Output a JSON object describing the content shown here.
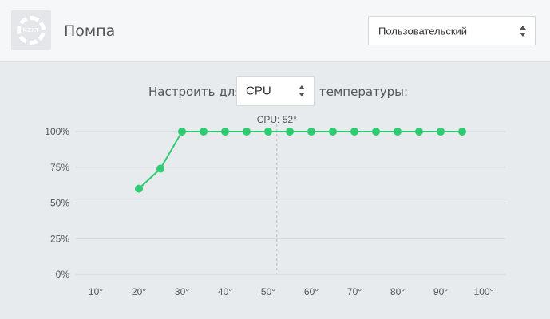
{
  "header": {
    "logo_text": "NZXT",
    "title": "Помпа",
    "preset": {
      "value": "Пользовательский"
    }
  },
  "config": {
    "prefix": "Настроить для",
    "sensor": "CPU",
    "suffix": "температуры:"
  },
  "colors": {
    "accent": "#2ecc71",
    "grid": "#cfd3d7",
    "marker": "#b8bcc1"
  },
  "chart_data": {
    "type": "line",
    "x_ticks": [
      "10°",
      "20°",
      "30°",
      "40°",
      "50°",
      "60°",
      "70°",
      "80°",
      "90°",
      "100°"
    ],
    "y_ticks": [
      "0%",
      "25%",
      "50%",
      "75%",
      "100%"
    ],
    "xlim": [
      10,
      100
    ],
    "ylim": [
      0,
      100
    ],
    "series": [
      {
        "x": [
          20,
          25,
          30,
          35,
          40,
          45,
          50,
          55,
          60,
          65,
          70,
          75,
          80,
          85,
          90,
          95
        ],
        "y": [
          60,
          74,
          100,
          100,
          100,
          100,
          100,
          100,
          100,
          100,
          100,
          100,
          100,
          100,
          100,
          100
        ]
      }
    ],
    "marker": {
      "label": "CPU: 52°",
      "x": 52
    }
  }
}
